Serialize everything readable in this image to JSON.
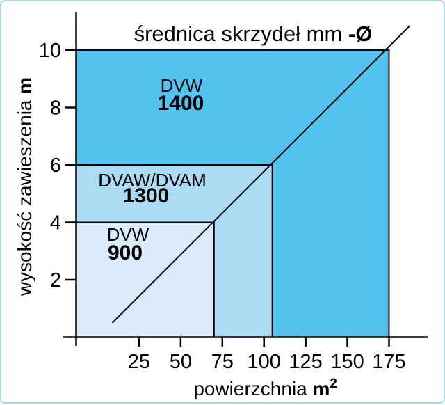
{
  "frame": {
    "border_color": "#a7daef",
    "background": "#ffffff"
  },
  "chart_data": {
    "type": "area",
    "title_full": "średnica skrzydeł mm -Ø",
    "title_parts": {
      "main": "średnica skrzydeł mm ",
      "bold_suffix": "-Ø"
    },
    "xlabel": {
      "text": "powierzchnia ",
      "unit": "m",
      "unit_sup": "2"
    },
    "ylabel": {
      "text": "wysokość zawieszenia ",
      "unit": "m"
    },
    "x_ticks": [
      "25",
      "50",
      "75",
      "100",
      "125",
      "150",
      "175"
    ],
    "y_ticks": [
      "2",
      "4",
      "6",
      "8",
      "10"
    ],
    "xlim": [
      0,
      175
    ],
    "ylim": [
      0,
      10
    ],
    "x_axis_unit": "m2 (powierzchnia / area)",
    "y_axis_unit": "m (wysokość zawieszenia / suspension height)",
    "axis_color": "#000000",
    "line_color": "#000000",
    "grid": false,
    "regions": [
      {
        "series": "DVW",
        "model": "1400",
        "x_max_m2": 175,
        "y_max_m": 10,
        "fill": "#53c3ef"
      },
      {
        "series": "DVAW/DVAM",
        "model": "1300",
        "x_max_m2": 105,
        "y_max_m": 6,
        "fill": "#abdcf4"
      },
      {
        "series": "DVW",
        "model": "900",
        "x_max_m2": 70,
        "y_max_m": 4,
        "fill": "#daecf9"
      }
    ],
    "diagonal_line": {
      "from_m2_m": [
        9,
        0.5
      ],
      "to_m2_m": [
        187.5,
        10.85
      ]
    }
  }
}
